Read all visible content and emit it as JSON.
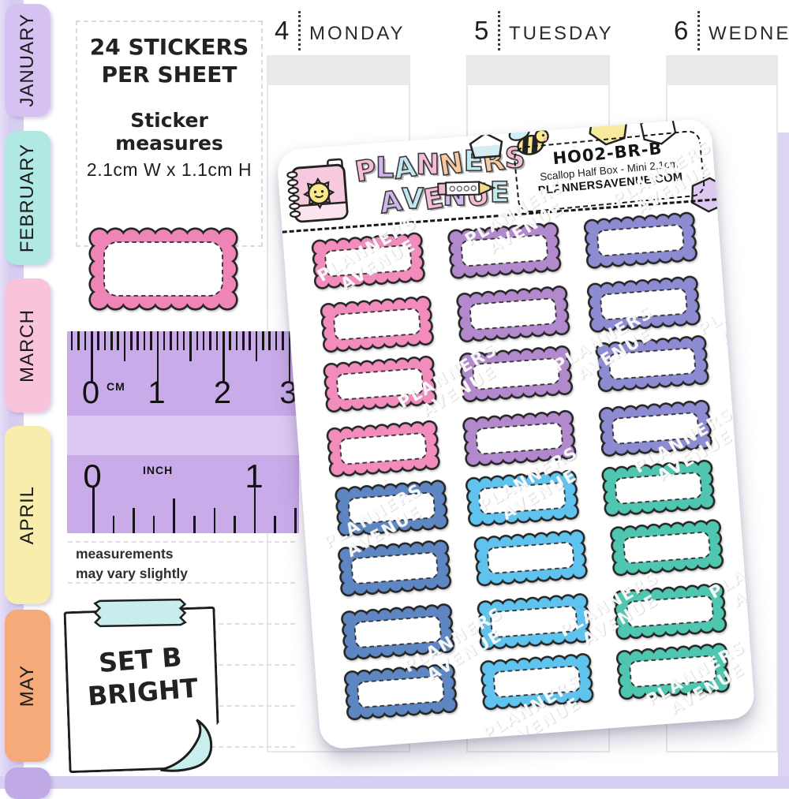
{
  "watermark": {
    "line1": "PLANNERS",
    "line2": "AVENUE"
  },
  "tabs": [
    {
      "label": "JANUARY",
      "color": "#d6c2f2"
    },
    {
      "label": "FEBRUARY",
      "color": "#b0e9e4"
    },
    {
      "label": "MARCH",
      "color": "#f9c3dc"
    },
    {
      "label": "APRIL",
      "color": "#f9edae"
    },
    {
      "label": "MAY",
      "color": "#f5aa79"
    },
    {
      "label": "",
      "color": "#c0aae6"
    }
  ],
  "calendar": {
    "columns": [
      {
        "num": "4",
        "name": "MONDAY"
      },
      {
        "num": "5",
        "name": "TUESDAY"
      },
      {
        "num": "6",
        "name": "WEDNE"
      }
    ]
  },
  "info_box": {
    "claim_line1": "24 STICKERS",
    "claim_line2": "PER SHEET",
    "measure_label": "Sticker measures",
    "measure_value": "2.1cm W  x  1.1cm H"
  },
  "ruler": {
    "cm_unit": "CM",
    "cm_numbers": [
      "0",
      "1",
      "2",
      "3"
    ],
    "inch_unit": "INCH",
    "inch_numbers": [
      "0",
      "1"
    ]
  },
  "disclaimer": {
    "line1": "measurements",
    "line2": "may vary slightly"
  },
  "note": {
    "line1": "SET B",
    "line2": "BRIGHT"
  },
  "sample_sticker_color": "#ef85b6",
  "sheet": {
    "logo": {
      "word1": "PLANNERS",
      "word2": "AVENUE",
      "word1_colors": [
        "#f6bcd9",
        "#cfb7ec",
        "#c2e9f0",
        "#f6bcd9",
        "#f8c9a0",
        "#c2e9f0",
        "#f8c9a0",
        "#f6bcd9"
      ],
      "word2_colors": [
        "#cfb7ec",
        "#c2e9f0",
        "#f6bcd9",
        "#cfb7ec",
        "#f6bcd9",
        "#c2e9f0"
      ]
    },
    "code_box": {
      "code": "HO02-BR-B",
      "subtitle": "Scallop Half Box - Mini 2.1cm",
      "website": "PLANNERSAVENUE.COM"
    },
    "sticker_columns": [
      [
        "#f18cbc",
        "#f18cbc",
        "#f18cbc",
        "#f18cbc",
        "#5e86c2",
        "#5e86c2",
        "#5e86c2",
        "#5e86c2"
      ],
      [
        "#b289cc",
        "#b289cc",
        "#b289cc",
        "#b289cc",
        "#5fc3ee",
        "#5fc3ee",
        "#5fc3ee",
        "#5fc3ee"
      ],
      [
        "#8d8bd2",
        "#8d8bd2",
        "#8d8bd2",
        "#8d8bd2",
        "#4fc7b0",
        "#4fc7b0",
        "#4fc7b0",
        "#4fc7b0"
      ]
    ]
  }
}
